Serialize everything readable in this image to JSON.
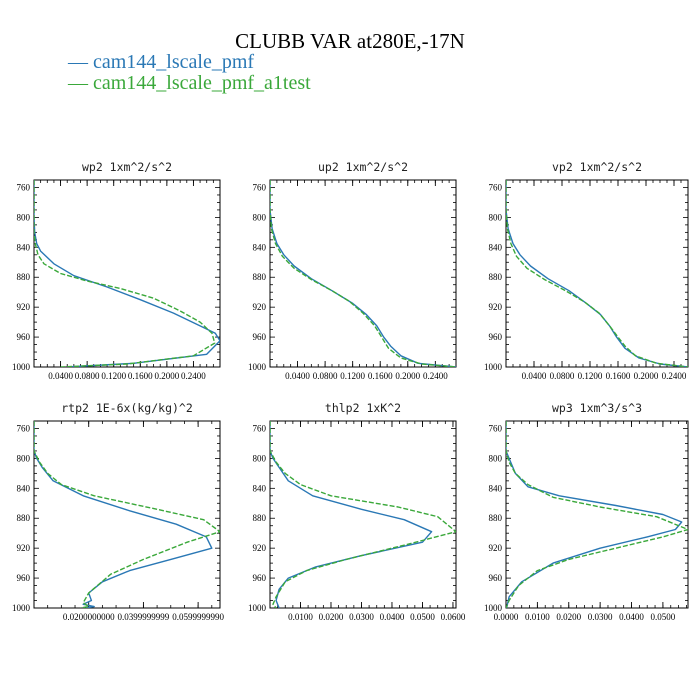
{
  "figure": {
    "title": "CLUBB VAR at280E,-17N",
    "legend": [
      {
        "label": "— cam144_lscale_pmf",
        "color": "#2a78b5"
      },
      {
        "label": "— cam144_lscale_pmf_a1test",
        "color": "#3aa83a"
      }
    ]
  },
  "chart_data": [
    {
      "type": "line",
      "title": "wp2   1xm^2/s^2",
      "ylim": [
        1000,
        750
      ],
      "yticks": [
        "760",
        "800",
        "840",
        "880",
        "920",
        "960",
        "1000"
      ],
      "ytick_values": [
        760,
        800,
        840,
        880,
        920,
        960,
        1000
      ],
      "xlim": [
        0,
        0.28
      ],
      "xticks": [
        "0.0400",
        "0.0800",
        "0.1200",
        "0.1600",
        "0.2000",
        "0.2400"
      ],
      "xtick_values": [
        0.04,
        0.08,
        0.12,
        0.16,
        0.2,
        0.24
      ],
      "series": [
        {
          "name": "cam144_lscale_pmf",
          "color": "#2a78b5",
          "dashed": false,
          "points": [
            [
              0,
              750
            ],
            [
              0,
              800
            ],
            [
              0.001,
              820
            ],
            [
              0.004,
              835
            ],
            [
              0.01,
              845
            ],
            [
              0.03,
              862
            ],
            [
              0.06,
              878
            ],
            [
              0.11,
              893
            ],
            [
              0.16,
              910
            ],
            [
              0.21,
              928
            ],
            [
              0.25,
              945
            ],
            [
              0.273,
              955
            ],
            [
              0.28,
              965
            ],
            [
              0.26,
              983
            ],
            [
              0.15,
              995
            ],
            [
              0.05,
              1000
            ]
          ]
        },
        {
          "name": "cam144_lscale_pmf_a1test",
          "color": "#3aa83a",
          "dashed": true,
          "points": [
            [
              0,
              750
            ],
            [
              0,
              800
            ],
            [
              0,
              820
            ],
            [
              0.002,
              835
            ],
            [
              0.006,
              850
            ],
            [
              0.015,
              862
            ],
            [
              0.04,
              875
            ],
            [
              0.08,
              885
            ],
            [
              0.13,
              895
            ],
            [
              0.18,
              908
            ],
            [
              0.22,
              925
            ],
            [
              0.25,
              940
            ],
            [
              0.268,
              955
            ],
            [
              0.272,
              968
            ],
            [
              0.24,
              985
            ],
            [
              0.14,
              996
            ],
            [
              0.04,
              1000
            ]
          ]
        }
      ]
    },
    {
      "type": "line",
      "title": "up2   1xm^2/s^2",
      "ylim": [
        1000,
        750
      ],
      "yticks": [
        "760",
        "800",
        "840",
        "880",
        "920",
        "960",
        "1000"
      ],
      "ytick_values": [
        760,
        800,
        840,
        880,
        920,
        960,
        1000
      ],
      "xlim": [
        0,
        0.27
      ],
      "xticks": [
        "0.0400",
        "0.0800",
        "0.1200",
        "0.1600",
        "0.2000",
        "0.2400"
      ],
      "xtick_values": [
        0.04,
        0.08,
        0.12,
        0.16,
        0.2,
        0.24
      ],
      "series": [
        {
          "name": "cam144_lscale_pmf",
          "color": "#2a78b5",
          "dashed": false,
          "points": [
            [
              0,
              750
            ],
            [
              0,
              790
            ],
            [
              0.003,
              815
            ],
            [
              0.01,
              835
            ],
            [
              0.02,
              850
            ],
            [
              0.035,
              865
            ],
            [
              0.06,
              882
            ],
            [
              0.09,
              898
            ],
            [
              0.12,
              915
            ],
            [
              0.14,
              930
            ],
            [
              0.155,
              945
            ],
            [
              0.165,
              960
            ],
            [
              0.175,
              972
            ],
            [
              0.19,
              985
            ],
            [
              0.215,
              995
            ],
            [
              0.27,
              1000
            ]
          ]
        },
        {
          "name": "cam144_lscale_pmf_a1test",
          "color": "#3aa83a",
          "dashed": true,
          "points": [
            [
              0,
              750
            ],
            [
              0,
              790
            ],
            [
              0.002,
              815
            ],
            [
              0.008,
              835
            ],
            [
              0.018,
              852
            ],
            [
              0.035,
              868
            ],
            [
              0.06,
              883
            ],
            [
              0.09,
              898
            ],
            [
              0.115,
              912
            ],
            [
              0.135,
              928
            ],
            [
              0.152,
              945
            ],
            [
              0.162,
              960
            ],
            [
              0.172,
              975
            ],
            [
              0.19,
              988
            ],
            [
              0.22,
              996
            ],
            [
              0.27,
              1000
            ]
          ]
        }
      ]
    },
    {
      "type": "line",
      "title": "vp2   1xm^2/s^2",
      "ylim": [
        1000,
        750
      ],
      "yticks": [
        "760",
        "800",
        "840",
        "880",
        "920",
        "960",
        "1000"
      ],
      "ytick_values": [
        760,
        800,
        840,
        880,
        920,
        960,
        1000
      ],
      "xlim": [
        0,
        0.26
      ],
      "xticks": [
        "0.0400",
        "0.0800",
        "0.1200",
        "0.1600",
        "0.2000",
        "0.2400"
      ],
      "xtick_values": [
        0.04,
        0.08,
        0.12,
        0.16,
        0.2,
        0.24
      ],
      "series": [
        {
          "name": "cam144_lscale_pmf",
          "color": "#2a78b5",
          "dashed": false,
          "points": [
            [
              0,
              750
            ],
            [
              0,
              790
            ],
            [
              0.003,
              815
            ],
            [
              0.01,
              835
            ],
            [
              0.02,
              850
            ],
            [
              0.035,
              865
            ],
            [
              0.06,
              882
            ],
            [
              0.09,
              898
            ],
            [
              0.115,
              915
            ],
            [
              0.135,
              930
            ],
            [
              0.148,
              945
            ],
            [
              0.158,
              960
            ],
            [
              0.17,
              975
            ],
            [
              0.19,
              988
            ],
            [
              0.22,
              996
            ],
            [
              0.26,
              1000
            ]
          ]
        },
        {
          "name": "cam144_lscale_pmf_a1test",
          "color": "#3aa83a",
          "dashed": true,
          "points": [
            [
              0,
              750
            ],
            [
              0,
              790
            ],
            [
              0.002,
              815
            ],
            [
              0.007,
              835
            ],
            [
              0.015,
              852
            ],
            [
              0.03,
              868
            ],
            [
              0.055,
              883
            ],
            [
              0.085,
              898
            ],
            [
              0.112,
              913
            ],
            [
              0.133,
              928
            ],
            [
              0.148,
              945
            ],
            [
              0.16,
              960
            ],
            [
              0.17,
              972
            ],
            [
              0.185,
              985
            ],
            [
              0.215,
              995
            ],
            [
              0.26,
              1000
            ]
          ]
        }
      ]
    },
    {
      "type": "line",
      "title": "rtp2   1E-6x(kg/kg)^2",
      "ylim": [
        1000,
        750
      ],
      "yticks": [
        "760",
        "800",
        "840",
        "880",
        "920",
        "960",
        "1000"
      ],
      "ytick_values": [
        760,
        800,
        840,
        880,
        920,
        960,
        1000
      ],
      "xlim": [
        0,
        0.068
      ],
      "xticks": [
        "0.0200000000",
        "0.0399999999",
        "0.0599999990"
      ],
      "xtick_values": [
        0.02,
        0.04,
        0.06
      ],
      "series": [
        {
          "name": "cam144_lscale_pmf",
          "color": "#2a78b5",
          "dashed": false,
          "points": [
            [
              0,
              750
            ],
            [
              0,
              790
            ],
            [
              0.001,
              800
            ],
            [
              0.003,
              812
            ],
            [
              0.007,
              830
            ],
            [
              0.018,
              850
            ],
            [
              0.035,
              870
            ],
            [
              0.052,
              888
            ],
            [
              0.063,
              905
            ],
            [
              0.065,
              920
            ],
            [
              0.05,
              935
            ],
            [
              0.035,
              950
            ],
            [
              0.025,
              965
            ],
            [
              0.02,
              980
            ],
            [
              0.021,
              990
            ],
            [
              0.018,
              995
            ],
            [
              0.022,
              998
            ],
            [
              0.019,
              1000
            ]
          ]
        },
        {
          "name": "cam144_lscale_pmf_a1test",
          "color": "#3aa83a",
          "dashed": true,
          "points": [
            [
              0,
              750
            ],
            [
              0,
              790
            ],
            [
              0.002,
              805
            ],
            [
              0.005,
              820
            ],
            [
              0.01,
              835
            ],
            [
              0.022,
              850
            ],
            [
              0.045,
              868
            ],
            [
              0.062,
              882
            ],
            [
              0.068,
              898
            ],
            [
              0.056,
              912
            ],
            [
              0.04,
              935
            ],
            [
              0.028,
              955
            ],
            [
              0.02,
              980
            ],
            [
              0.018,
              993
            ],
            [
              0.02,
              998
            ],
            [
              0.017,
              1000
            ]
          ]
        }
      ]
    },
    {
      "type": "line",
      "title": "thlp2   1xK^2",
      "ylim": [
        1000,
        750
      ],
      "yticks": [
        "760",
        "800",
        "840",
        "880",
        "920",
        "960",
        "1000"
      ],
      "ytick_values": [
        760,
        800,
        840,
        880,
        920,
        960,
        1000
      ],
      "xlim": [
        0,
        0.061
      ],
      "xticks": [
        "0.0100",
        "0.0200",
        "0.0300",
        "0.0400",
        "0.0500",
        "0.0600"
      ],
      "xtick_values": [
        0.01,
        0.02,
        0.03,
        0.04,
        0.05,
        0.06
      ],
      "series": [
        {
          "name": "cam144_lscale_pmf",
          "color": "#2a78b5",
          "dashed": false,
          "points": [
            [
              0,
              750
            ],
            [
              0,
              790
            ],
            [
              0.001,
              800
            ],
            [
              0.003,
              812
            ],
            [
              0.006,
              830
            ],
            [
              0.014,
              850
            ],
            [
              0.03,
              868
            ],
            [
              0.044,
              882
            ],
            [
              0.053,
              898
            ],
            [
              0.05,
              912
            ],
            [
              0.03,
              930
            ],
            [
              0.015,
              945
            ],
            [
              0.006,
              960
            ],
            [
              0.003,
              975
            ],
            [
              0.002,
              990
            ],
            [
              0.003,
              1000
            ]
          ]
        },
        {
          "name": "cam144_lscale_pmf_a1test",
          "color": "#3aa83a",
          "dashed": true,
          "points": [
            [
              0,
              750
            ],
            [
              0,
              790
            ],
            [
              0.002,
              805
            ],
            [
              0.005,
              820
            ],
            [
              0.01,
              835
            ],
            [
              0.02,
              850
            ],
            [
              0.042,
              865
            ],
            [
              0.055,
              878
            ],
            [
              0.061,
              898
            ],
            [
              0.045,
              915
            ],
            [
              0.025,
              935
            ],
            [
              0.012,
              950
            ],
            [
              0.005,
              965
            ],
            [
              0.002,
              985
            ],
            [
              0.001,
              995
            ],
            [
              0.002,
              1000
            ]
          ]
        }
      ]
    },
    {
      "type": "line",
      "title": "wp3   1xm^3/s^3",
      "ylim": [
        1000,
        750
      ],
      "yticks": [
        "760",
        "800",
        "840",
        "880",
        "920",
        "960",
        "1000"
      ],
      "ytick_values": [
        760,
        800,
        840,
        880,
        920,
        960,
        1000
      ],
      "xlim": [
        0,
        0.058
      ],
      "xticks": [
        "0.0000",
        "0.0100",
        "0.0200",
        "0.0300",
        "0.0400",
        "0.0500"
      ],
      "xtick_values": [
        0,
        0.01,
        0.02,
        0.03,
        0.04,
        0.05
      ],
      "series": [
        {
          "name": "cam144_lscale_pmf",
          "color": "#2a78b5",
          "dashed": false,
          "points": [
            [
              0,
              750
            ],
            [
              0,
              790
            ],
            [
              0.001,
              800
            ],
            [
              0.003,
              820
            ],
            [
              0.007,
              838
            ],
            [
              0.017,
              850
            ],
            [
              0.035,
              863
            ],
            [
              0.05,
              875
            ],
            [
              0.056,
              885
            ],
            [
              0.054,
              895
            ],
            [
              0.045,
              905
            ],
            [
              0.03,
              920
            ],
            [
              0.015,
              940
            ],
            [
              0.005,
              965
            ],
            [
              0.001,
              985
            ],
            [
              0.0002,
              1000
            ]
          ]
        },
        {
          "name": "cam144_lscale_pmf_a1test",
          "color": "#3aa83a",
          "dashed": true,
          "points": [
            [
              0,
              750
            ],
            [
              0,
              790
            ],
            [
              0.001,
              805
            ],
            [
              0.003,
              820
            ],
            [
              0.007,
              835
            ],
            [
              0.015,
              852
            ],
            [
              0.03,
              865
            ],
            [
              0.048,
              878
            ],
            [
              0.058,
              895
            ],
            [
              0.05,
              905
            ],
            [
              0.035,
              920
            ],
            [
              0.02,
              935
            ],
            [
              0.01,
              950
            ],
            [
              0.004,
              970
            ],
            [
              0.001,
              990
            ],
            [
              0,
              1000
            ]
          ]
        }
      ]
    }
  ]
}
